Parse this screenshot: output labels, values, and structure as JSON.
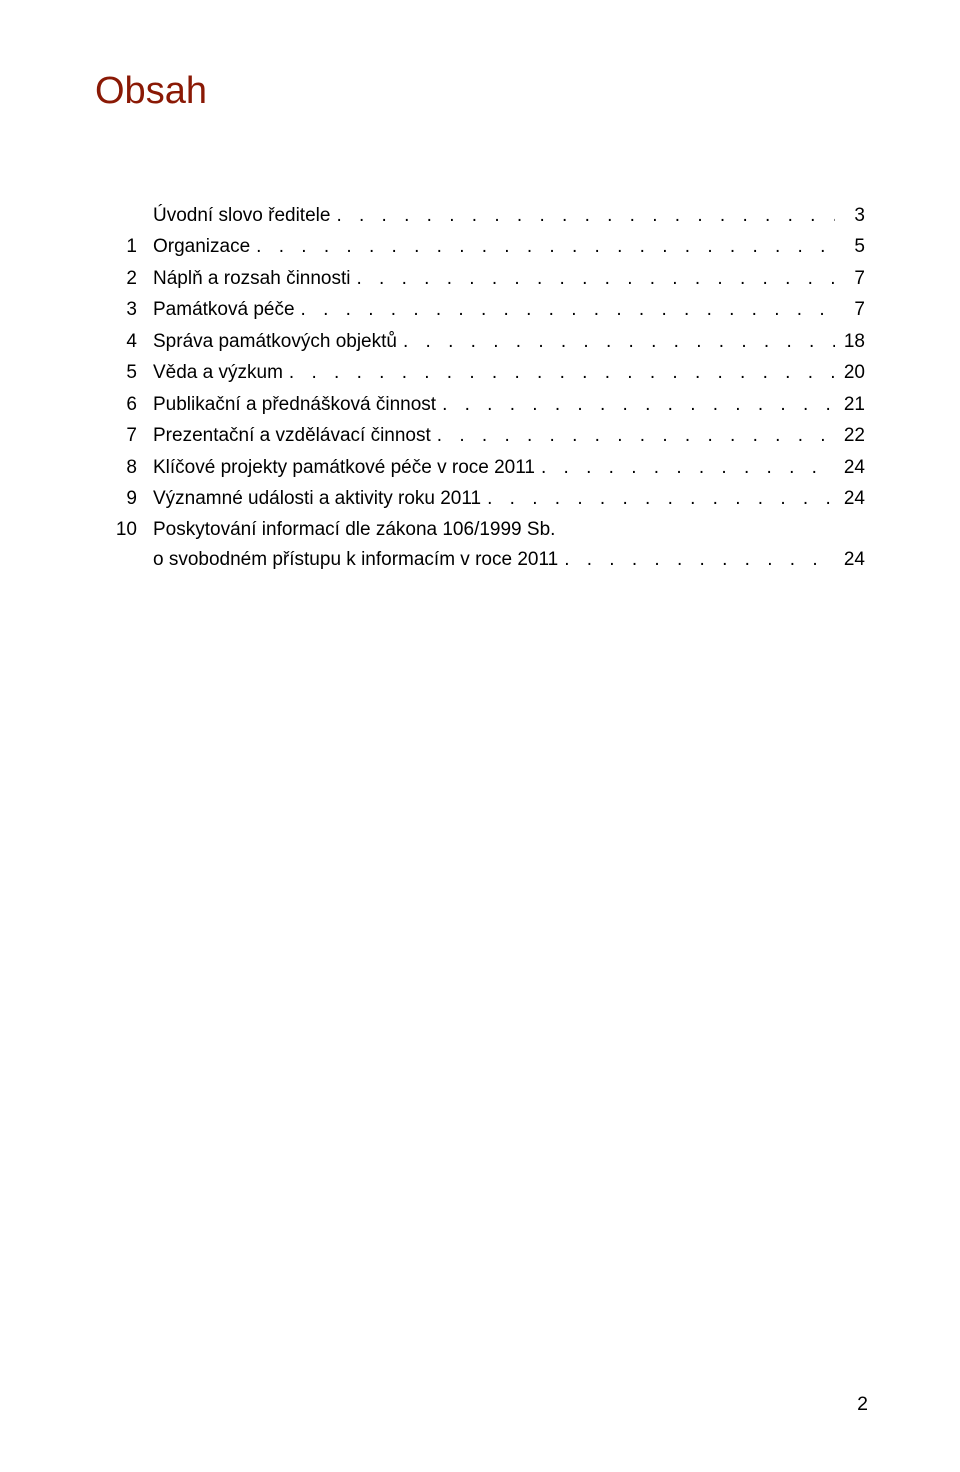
{
  "colors": {
    "title": "#8a1905",
    "text": "#000000",
    "background": "#ffffff"
  },
  "typography": {
    "body_font": "Arial",
    "body_size_pt": 15,
    "title_size_pt": 30,
    "title_weight": "400"
  },
  "page": {
    "title": "Obsah",
    "footer_page_number": "2"
  },
  "toc": {
    "leader_char": ".",
    "first_entry": {
      "label": "Úvodní slovo ředitele",
      "page": "3"
    },
    "items": [
      {
        "num": "1",
        "label": "Organizace",
        "page": "5"
      },
      {
        "num": "2",
        "label": "Náplň a rozsah činnosti",
        "page": "7"
      },
      {
        "num": "3",
        "label": "Památková péče",
        "page": "7"
      },
      {
        "num": "4",
        "label": "Správa památkových objektů",
        "page": "18"
      },
      {
        "num": "5",
        "label": "Věda a výzkum",
        "page": "20"
      },
      {
        "num": "6",
        "label": "Publikační a přednášková činnost",
        "page": "21"
      },
      {
        "num": "7",
        "label": "Prezentační a vzdělávací činnost",
        "page": "22"
      },
      {
        "num": "8",
        "label": "Klíčové projekty památkové péče v roce 2011",
        "page": "24"
      },
      {
        "num": "9",
        "label": "Významné události a aktivity roku 2011",
        "page": "24"
      },
      {
        "num": "10",
        "label": "Poskytování informací dle zákona 106/1999 Sb.",
        "page": ""
      }
    ],
    "continuation": {
      "label": "o svobodném přístupu k informacím v roce 2011",
      "page": "24"
    }
  }
}
